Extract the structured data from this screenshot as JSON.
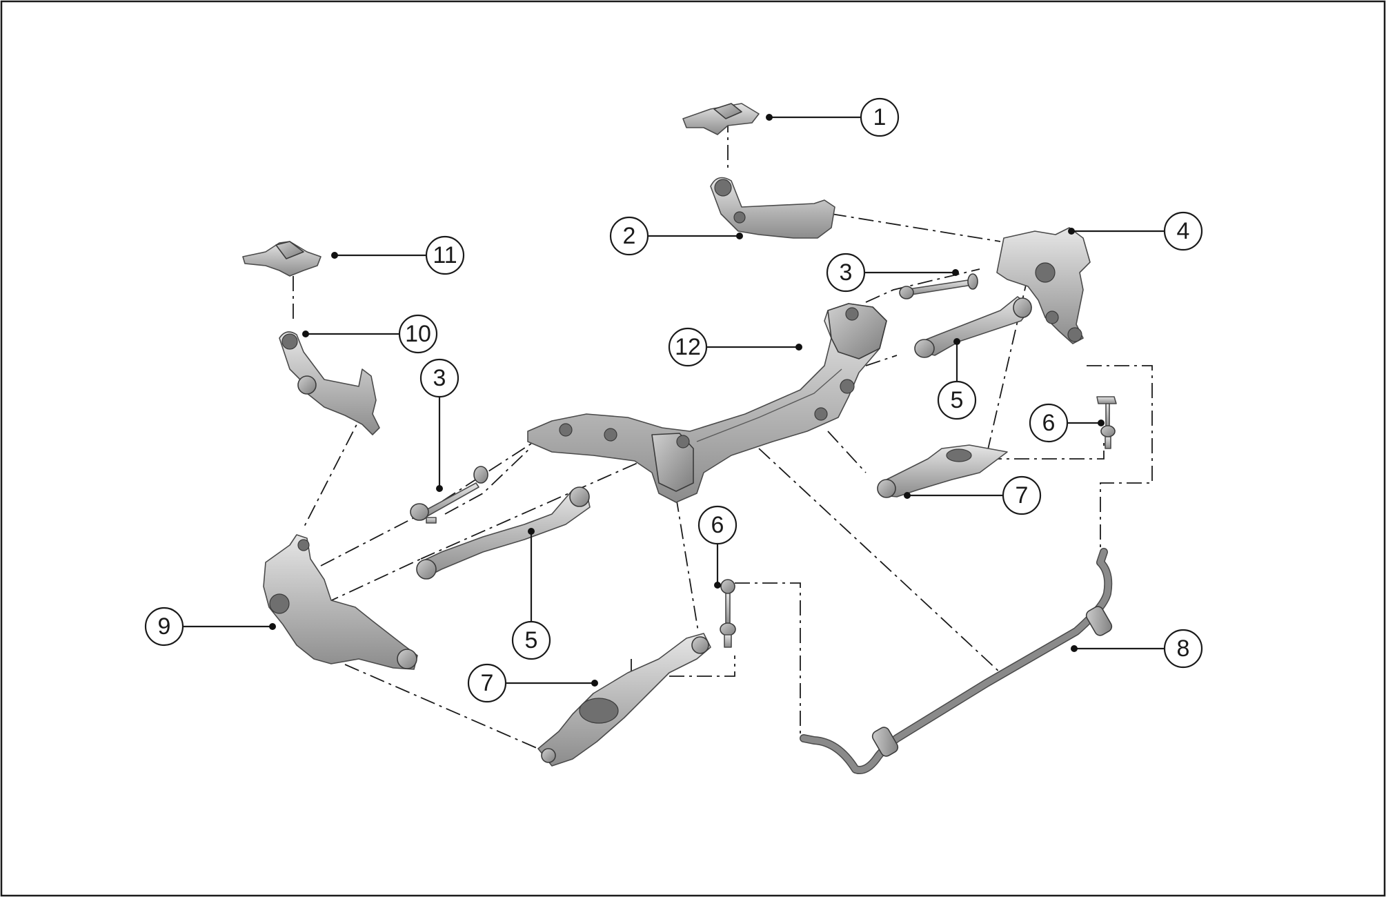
{
  "callouts": [
    {
      "id": "c1",
      "label": "1"
    },
    {
      "id": "c2",
      "label": "2"
    },
    {
      "id": "c3a",
      "label": "3"
    },
    {
      "id": "c3b",
      "label": "3"
    },
    {
      "id": "c4",
      "label": "4"
    },
    {
      "id": "c5a",
      "label": "5"
    },
    {
      "id": "c5b",
      "label": "5"
    },
    {
      "id": "c6a",
      "label": "6"
    },
    {
      "id": "c6b",
      "label": "6"
    },
    {
      "id": "c7a",
      "label": "7"
    },
    {
      "id": "c7b",
      "label": "7"
    },
    {
      "id": "c8",
      "label": "8"
    },
    {
      "id": "c9",
      "label": "9"
    },
    {
      "id": "c10",
      "label": "10"
    },
    {
      "id": "c11",
      "label": "11"
    },
    {
      "id": "c12",
      "label": "12"
    }
  ]
}
